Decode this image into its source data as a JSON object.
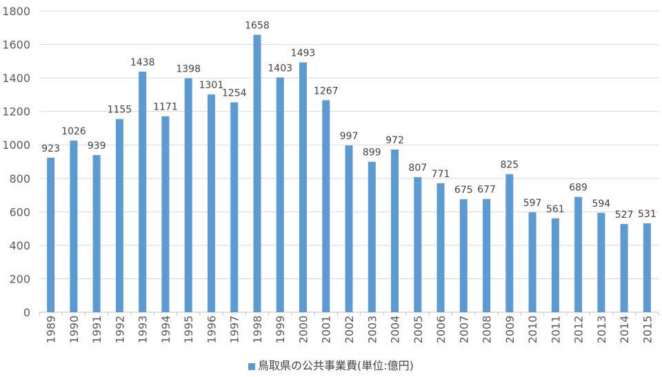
{
  "chart_data": {
    "type": "bar",
    "categories": [
      "1989",
      "1990",
      "1991",
      "1992",
      "1993",
      "1994",
      "1995",
      "1996",
      "1997",
      "1998",
      "1999",
      "2000",
      "2001",
      "2002",
      "2003",
      "2004",
      "2005",
      "2006",
      "2007",
      "2008",
      "2009",
      "2010",
      "2011",
      "2012",
      "2013",
      "2014",
      "2015"
    ],
    "series": [
      {
        "name": "鳥取県の公共事業費(単位:億円)",
        "values": [
          923,
          1026,
          939,
          1155,
          1438,
          1171,
          1398,
          1301,
          1254,
          1658,
          1403,
          1493,
          1267,
          997,
          899,
          972,
          807,
          771,
          675,
          677,
          825,
          597,
          561,
          689,
          594,
          527,
          531
        ],
        "color": "#5b9bd5"
      }
    ],
    "ylim": [
      0,
      1800
    ],
    "yticks": [
      0,
      200,
      400,
      600,
      800,
      1000,
      1200,
      1400,
      1600,
      1800
    ],
    "grid": true,
    "data_labels": true,
    "legend_position": "bottom",
    "xlabel": "",
    "ylabel": "",
    "title": ""
  },
  "colors": {
    "bar": "#5b9bd5",
    "grid": "#d9d9d9",
    "axis": "#bfbfbf",
    "text": "#595959"
  }
}
